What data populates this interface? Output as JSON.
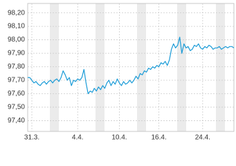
{
  "chart_data": {
    "type": "line",
    "categories": [
      null,
      null,
      "31.3.",
      null,
      null,
      null,
      null,
      null,
      null,
      null,
      null,
      null,
      null,
      null,
      null,
      null,
      null,
      null,
      null,
      null,
      null,
      null,
      null,
      null,
      "4.4.",
      null,
      null,
      null,
      null,
      null,
      null,
      null,
      null,
      null,
      null,
      null,
      null,
      null,
      null,
      null,
      null,
      null,
      null,
      null,
      "10.4.",
      null,
      null,
      null,
      null,
      null,
      null,
      null,
      null,
      null,
      null,
      null,
      null,
      null,
      null,
      null,
      null,
      null,
      null,
      "16.4.",
      null,
      null,
      null,
      null,
      null,
      null,
      null,
      null,
      null,
      null,
      null,
      null,
      null,
      null,
      null,
      null,
      null,
      null,
      null,
      null,
      "24.4.",
      null,
      null,
      null,
      null,
      null,
      null,
      null,
      null,
      null,
      null,
      null,
      null,
      null,
      null,
      null
    ],
    "series": [
      {
        "color": "#1a9bd7",
        "values": [
          97.72,
          97.72,
          97.7,
          97.68,
          97.69,
          97.67,
          97.66,
          97.68,
          97.69,
          97.67,
          97.69,
          97.7,
          97.68,
          97.7,
          97.71,
          97.69,
          97.72,
          97.77,
          97.74,
          97.7,
          97.72,
          97.66,
          97.7,
          97.69,
          97.71,
          97.7,
          97.72,
          97.78,
          97.68,
          97.6,
          97.62,
          97.61,
          97.64,
          97.62,
          97.65,
          97.63,
          97.66,
          97.64,
          97.68,
          97.7,
          97.66,
          97.69,
          97.67,
          97.71,
          97.68,
          97.66,
          97.69,
          97.67,
          97.68,
          97.7,
          97.68,
          97.7,
          97.73,
          97.71,
          97.75,
          97.74,
          97.77,
          97.76,
          97.79,
          97.78,
          97.8,
          97.79,
          97.81,
          97.8,
          97.83,
          97.82,
          97.84,
          97.81,
          97.85,
          97.93,
          97.97,
          97.94,
          97.96,
          98.02,
          97.9,
          97.97,
          97.94,
          97.95,
          97.92,
          97.93,
          97.96,
          97.95,
          97.97,
          97.94,
          97.93,
          97.95,
          97.94,
          97.96,
          97.95,
          97.93,
          97.94,
          97.94,
          97.95,
          97.93,
          97.94,
          97.95,
          97.94,
          97.95,
          97.95,
          97.94
        ]
      }
    ],
    "ylim": [
      97.32,
      98.27
    ],
    "yticks": [
      {
        "value": 97.4,
        "label": "97,40"
      },
      {
        "value": 97.5,
        "label": "97,50"
      },
      {
        "value": 97.6,
        "label": "97,60"
      },
      {
        "value": 97.7,
        "label": "97,70"
      },
      {
        "value": 97.8,
        "label": "97,80"
      },
      {
        "value": 97.9,
        "label": "97,90"
      },
      {
        "value": 98.0,
        "label": "98,00"
      },
      {
        "value": 98.1,
        "label": "98,10"
      },
      {
        "value": 98.2,
        "label": "98,20"
      }
    ],
    "grid": true
  }
}
